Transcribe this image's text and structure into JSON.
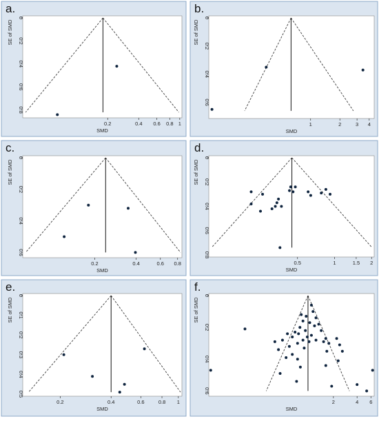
{
  "colors": {
    "panel_bg": "#dbe5f0",
    "panel_border": "#8ea9c8",
    "plot_bg": "#ffffff",
    "funnel": "#3a3a3a",
    "point": "#10253f"
  },
  "chart_data": [
    {
      "panel": "a.",
      "type": "scatter",
      "xlabel": "SMD",
      "ylabel": "SE of SMD",
      "x_scale": "log",
      "y_inverted": true,
      "xlim": [
        0.03,
        1.05
      ],
      "ylim": [
        0,
        0.85
      ],
      "x_ticks": [
        {
          "value": 0.2,
          "label": "0.2"
        },
        {
          "value": 0.4,
          "label": "0.4"
        },
        {
          "value": 0.6,
          "label": "0.6"
        },
        {
          "value": 0.8,
          "label": "0.8"
        },
        {
          "value": 1,
          "label": "1"
        }
      ],
      "y_ticks": [
        {
          "value": 0,
          "label": "0"
        },
        {
          "value": 0.2,
          "label": "0.2"
        },
        {
          "value": 0.4,
          "label": "0.4"
        },
        {
          "value": 0.6,
          "label": "0.6"
        },
        {
          "value": 0.8,
          "label": "0.8"
        }
      ],
      "pooled": 0.18,
      "funnel": {
        "apex": [
          0.18,
          0
        ],
        "left": [
          0.032,
          0.82
        ],
        "right": [
          0.98,
          0.82
        ]
      },
      "points": [
        {
          "x": 0.245,
          "y": 0.42
        },
        {
          "x": 0.065,
          "y": 0.84
        }
      ]
    },
    {
      "panel": "b.",
      "type": "scatter",
      "xlabel": "SMD",
      "ylabel": "SE of SMD",
      "x_scale": "log",
      "y_inverted": true,
      "xlim": [
        0.09,
        4.5
      ],
      "ylim": [
        0,
        0.7
      ],
      "x_ticks": [
        {
          "value": 1,
          "label": "1"
        },
        {
          "value": 2,
          "label": "2"
        },
        {
          "value": 3,
          "label": "3"
        },
        {
          "value": 4,
          "label": "4"
        }
      ],
      "y_ticks": [
        {
          "value": 0,
          "label": "0"
        },
        {
          "value": 0.2,
          "label": "0.2"
        },
        {
          "value": 0.4,
          "label": "0.4"
        },
        {
          "value": 0.6,
          "label": "0.6"
        }
      ],
      "pooled": 0.63,
      "funnel": {
        "apex": [
          0.63,
          0
        ],
        "left": [
          0.21,
          0.66
        ],
        "right": [
          2.75,
          0.66
        ]
      },
      "points": [
        {
          "x": 0.35,
          "y": 0.35
        },
        {
          "x": 3.45,
          "y": 0.37
        },
        {
          "x": 0.097,
          "y": 0.65
        }
      ]
    },
    {
      "panel": "c.",
      "type": "scatter",
      "xlabel": "SMD",
      "ylabel": "SE of SMD",
      "x_scale": "log",
      "y_inverted": true,
      "xlim": [
        0.06,
        0.86
      ],
      "ylim": [
        0,
        0.62
      ],
      "x_ticks": [
        {
          "value": 0.2,
          "label": "0.2"
        },
        {
          "value": 0.4,
          "label": "0.4"
        },
        {
          "value": 0.6,
          "label": "0.6"
        },
        {
          "value": 0.8,
          "label": "0.8"
        }
      ],
      "y_ticks": [
        {
          "value": 0,
          "label": "0"
        },
        {
          "value": 0.2,
          "label": "0.2"
        },
        {
          "value": 0.4,
          "label": "0.4"
        },
        {
          "value": 0.6,
          "label": "0.6"
        }
      ],
      "pooled": 0.24,
      "funnel": {
        "apex": [
          0.24,
          0
        ],
        "left": [
          0.063,
          0.6
        ],
        "right": [
          0.84,
          0.6
        ]
      },
      "points": [
        {
          "x": 0.18,
          "y": 0.3
        },
        {
          "x": 0.35,
          "y": 0.32
        },
        {
          "x": 0.12,
          "y": 0.5
        },
        {
          "x": 0.395,
          "y": 0.6
        }
      ]
    },
    {
      "panel": "d.",
      "type": "scatter",
      "xlabel": "SMD",
      "ylabel": "SE of SMD",
      "x_scale": "log",
      "y_inverted": true,
      "xlim": [
        0.095,
        2.1
      ],
      "ylim": [
        0,
        0.8
      ],
      "x_ticks": [
        {
          "value": 0.5,
          "label": "0.5"
        },
        {
          "value": 1,
          "label": "1"
        },
        {
          "value": 1.5,
          "label": "1.5"
        },
        {
          "value": 2,
          "label": "2"
        }
      ],
      "y_ticks": [
        {
          "value": 0,
          "label": "0"
        },
        {
          "value": 0.2,
          "label": "0.2"
        },
        {
          "value": 0.4,
          "label": "0.4"
        },
        {
          "value": 0.6,
          "label": "0.6"
        },
        {
          "value": 0.8,
          "label": "0.8"
        }
      ],
      "pooled": 0.45,
      "funnel": {
        "apex": [
          0.45,
          0
        ],
        "left": [
          0.1,
          0.74
        ],
        "right": [
          2.02,
          0.74
        ]
      },
      "points": [
        {
          "x": 0.44,
          "y": 0.24
        },
        {
          "x": 0.48,
          "y": 0.24
        },
        {
          "x": 0.43,
          "y": 0.27
        },
        {
          "x": 0.46,
          "y": 0.28
        },
        {
          "x": 0.85,
          "y": 0.26
        },
        {
          "x": 0.21,
          "y": 0.28
        },
        {
          "x": 0.61,
          "y": 0.28
        },
        {
          "x": 0.26,
          "y": 0.3
        },
        {
          "x": 0.78,
          "y": 0.29
        },
        {
          "x": 0.64,
          "y": 0.31
        },
        {
          "x": 0.92,
          "y": 0.3
        },
        {
          "x": 0.35,
          "y": 0.34
        },
        {
          "x": 0.34,
          "y": 0.37
        },
        {
          "x": 0.21,
          "y": 0.38
        },
        {
          "x": 0.33,
          "y": 0.4
        },
        {
          "x": 0.37,
          "y": 0.4
        },
        {
          "x": 0.31,
          "y": 0.42
        },
        {
          "x": 0.25,
          "y": 0.44
        },
        {
          "x": 0.36,
          "y": 0.74
        }
      ]
    },
    {
      "panel": "e.",
      "type": "scatter",
      "xlabel": "SMD",
      "ylabel": "SE of SMD",
      "x_scale": "log",
      "y_inverted": true,
      "xlim": [
        0.12,
        1.05
      ],
      "ylim": [
        0,
        0.5
      ],
      "x_ticks": [
        {
          "value": 0.2,
          "label": "0.2"
        },
        {
          "value": 0.4,
          "label": "0.4"
        },
        {
          "value": 0.6,
          "label": "0.6"
        },
        {
          "value": 0.8,
          "label": "0.8"
        },
        {
          "value": 1,
          "label": "1"
        }
      ],
      "y_ticks": [
        {
          "value": 0,
          "label": "0"
        },
        {
          "value": 0.1,
          "label": "0.1"
        },
        {
          "value": 0.2,
          "label": "0.2"
        },
        {
          "value": 0.3,
          "label": "0.3"
        },
        {
          "value": 0.4,
          "label": "0.4"
        },
        {
          "value": 0.5,
          "label": "0.5"
        }
      ],
      "pooled": 0.4,
      "funnel": {
        "apex": [
          0.4,
          0
        ],
        "left": [
          0.13,
          0.49
        ],
        "right": [
          1.03,
          0.49
        ]
      },
      "points": [
        {
          "x": 0.21,
          "y": 0.3
        },
        {
          "x": 0.63,
          "y": 0.27
        },
        {
          "x": 0.31,
          "y": 0.41
        },
        {
          "x": 0.48,
          "y": 0.45
        },
        {
          "x": 0.45,
          "y": 0.49
        }
      ]
    },
    {
      "panel": "f.",
      "type": "scatter",
      "xlabel": "SMD",
      "ylabel": "SE of SMD",
      "x_scale": "log",
      "y_inverted": true,
      "xlim": [
        0.052,
        6.6
      ],
      "ylim": [
        0,
        0.62
      ],
      "x_ticks": [
        {
          "value": 2,
          "label": "2"
        },
        {
          "value": 4,
          "label": "4"
        },
        {
          "value": 6,
          "label": "6"
        }
      ],
      "y_ticks": [
        {
          "value": 0,
          "label": "0"
        },
        {
          "value": 0.2,
          "label": "0.2"
        },
        {
          "value": 0.4,
          "label": "0.4"
        },
        {
          "value": 0.6,
          "label": "0.6"
        }
      ],
      "pooled": 0.95,
      "funnel": {
        "apex": [
          0.95,
          0
        ],
        "left": [
          0.28,
          0.6
        ],
        "right": [
          3.2,
          0.6
        ]
      },
      "points": [
        {
          "x": 1.05,
          "y": 0.06
        },
        {
          "x": 1.1,
          "y": 0.1
        },
        {
          "x": 0.78,
          "y": 0.12
        },
        {
          "x": 0.9,
          "y": 0.13
        },
        {
          "x": 1.2,
          "y": 0.14
        },
        {
          "x": 0.82,
          "y": 0.16
        },
        {
          "x": 1.0,
          "y": 0.17
        },
        {
          "x": 1.3,
          "y": 0.18
        },
        {
          "x": 1.15,
          "y": 0.19
        },
        {
          "x": 0.75,
          "y": 0.2
        },
        {
          "x": 0.15,
          "y": 0.21
        },
        {
          "x": 0.88,
          "y": 0.22
        },
        {
          "x": 1.4,
          "y": 0.22
        },
        {
          "x": 0.65,
          "y": 0.23
        },
        {
          "x": 0.52,
          "y": 0.24
        },
        {
          "x": 0.72,
          "y": 0.24
        },
        {
          "x": 1.05,
          "y": 0.25
        },
        {
          "x": 0.6,
          "y": 0.26
        },
        {
          "x": 0.93,
          "y": 0.26
        },
        {
          "x": 1.6,
          "y": 0.27
        },
        {
          "x": 2.2,
          "y": 0.27
        },
        {
          "x": 0.45,
          "y": 0.28
        },
        {
          "x": 0.82,
          "y": 0.28
        },
        {
          "x": 1.2,
          "y": 0.28
        },
        {
          "x": 0.36,
          "y": 0.29
        },
        {
          "x": 0.98,
          "y": 0.29
        },
        {
          "x": 1.5,
          "y": 0.29
        },
        {
          "x": 1.75,
          "y": 0.3
        },
        {
          "x": 0.7,
          "y": 0.3
        },
        {
          "x": 2.4,
          "y": 0.31
        },
        {
          "x": 0.55,
          "y": 0.32
        },
        {
          "x": 0.85,
          "y": 0.33
        },
        {
          "x": 0.4,
          "y": 0.34
        },
        {
          "x": 1.65,
          "y": 0.35
        },
        {
          "x": 2.6,
          "y": 0.35
        },
        {
          "x": 0.6,
          "y": 0.37
        },
        {
          "x": 0.5,
          "y": 0.39
        },
        {
          "x": 0.7,
          "y": 0.4
        },
        {
          "x": 2.3,
          "y": 0.41
        },
        {
          "x": 1.6,
          "y": 0.44
        },
        {
          "x": 0.76,
          "y": 0.45
        },
        {
          "x": 0.42,
          "y": 0.49
        },
        {
          "x": 0.055,
          "y": 0.47
        },
        {
          "x": 6.3,
          "y": 0.47
        },
        {
          "x": 0.68,
          "y": 0.54
        },
        {
          "x": 4.0,
          "y": 0.56
        },
        {
          "x": 1.9,
          "y": 0.57
        },
        {
          "x": 5.3,
          "y": 0.6
        }
      ]
    }
  ]
}
